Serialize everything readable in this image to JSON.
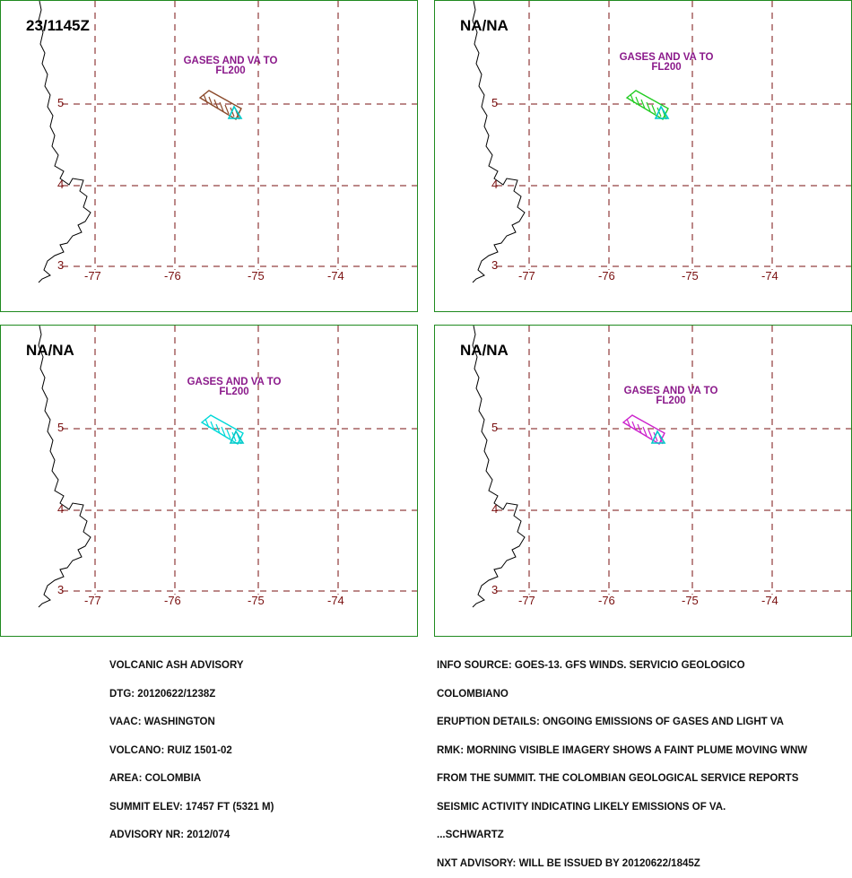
{
  "panels": [
    {
      "time": "23/1145Z",
      "label_line1": "GASES AND VA TO",
      "label_line2": "FL200",
      "plume_color": "#8b4a2b"
    },
    {
      "time": "NA/NA",
      "label_line1": "GASES AND VA TO",
      "label_line2": "FL200",
      "plume_color": "#22cc22"
    },
    {
      "time": "NA/NA",
      "label_line1": "GASES AND VA TO",
      "label_line2": "FL200",
      "plume_color": "#00d8d8"
    },
    {
      "time": "NA/NA",
      "label_line1": "GASES AND VA TO",
      "label_line2": "FL200",
      "plume_color": "#cc22cc"
    }
  ],
  "map": {
    "lat_labels": [
      "5",
      "4",
      "3"
    ],
    "lon_labels": [
      "-77",
      "-76",
      "-75",
      "-74"
    ],
    "grid_color": "#7a1010",
    "coast_color": "#000000",
    "volcano_icon": "volcano-triangle-icon",
    "volcano_color": "#00c8c8"
  },
  "advisory": {
    "lines": [
      "VOLCANIC ASH ADVISORY",
      "DTG: 20120622/1238Z",
      "VAAC: WASHINGTON",
      "VOLCANO: RUIZ 1501-02",
      "AREA: COLOMBIA",
      "SUMMIT ELEV: 17457 FT (5321 M)",
      "ADVISORY NR: 2012/074"
    ]
  },
  "remarks": {
    "lines": [
      "INFO SOURCE: GOES-13. GFS WINDS. SERVICIO GEOLOGICO",
      "COLOMBIANO",
      "ERUPTION DETAILS: ONGOING EMISSIONS OF GASES AND LIGHT VA",
      "RMK: MORNING VISIBLE IMAGERY SHOWS A FAINT PLUME MOVING WNW",
      "FROM THE SUMMIT. THE COLOMBIAN GEOLOGICAL SERVICE REPORTS",
      "SEISMIC ACTIVITY INDICATING LIKELY EMISSIONS OF VA.",
      "...SCHWARTZ",
      "NXT ADVISORY: WILL BE ISSUED BY 20120622/1845Z"
    ]
  }
}
